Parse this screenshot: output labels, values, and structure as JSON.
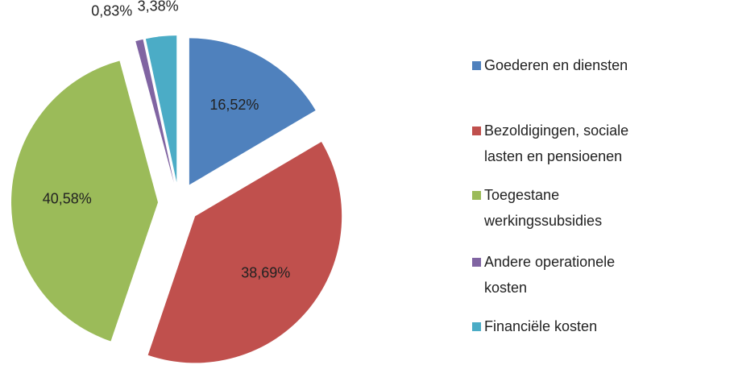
{
  "chart_data": {
    "type": "pie",
    "categories": [
      "Goederen en diensten",
      "Bezoldigingen, sociale lasten en pensioenen",
      "Toegestane werkingssubsidies",
      "Andere operationele kosten",
      "Financiële kosten"
    ],
    "values": [
      16.52,
      38.69,
      40.58,
      0.83,
      3.38
    ],
    "value_labels": [
      "16,52%",
      "38,69%",
      "40,58%",
      "0,83%",
      "3,38%"
    ],
    "colors": [
      "#4f81bd",
      "#c0504d",
      "#9bbb59",
      "#8064a2",
      "#4bacc6"
    ],
    "legend": "right"
  }
}
